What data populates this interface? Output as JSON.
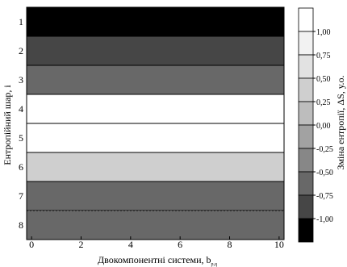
{
  "chart_data": {
    "type": "heatmap",
    "title": "",
    "xlabel": "Двокомпонентні системи, b",
    "xlabel_subscript": "p,q",
    "ylabel": "Ентропійний шар, i",
    "colorbar_label": "Зміна ентропії, ΔS, у.о.",
    "x_range": [
      -0.2,
      10.2
    ],
    "x_ticks": [
      0,
      2,
      4,
      6,
      8,
      10
    ],
    "layers": [
      1,
      2,
      3,
      4,
      5,
      6,
      7,
      8
    ],
    "layer_values": [
      -1.0,
      -0.6,
      -0.45,
      0.9,
      0.85,
      0.25,
      -0.4,
      -0.45
    ],
    "colorbar_ticks": [
      "1,00",
      "0,75",
      "0,50",
      "0,25",
      "0,00",
      "-0,25",
      "-0,50",
      "-0,75",
      "-1,00"
    ],
    "colorbar_colors": [
      "#ffffff",
      "#f2f2f2",
      "#e2e2e2",
      "#cfcfcf",
      "#bdbdbd",
      "#a2a2a2",
      "#878787",
      "#686868",
      "#464646",
      "#000000"
    ],
    "grid": false
  }
}
